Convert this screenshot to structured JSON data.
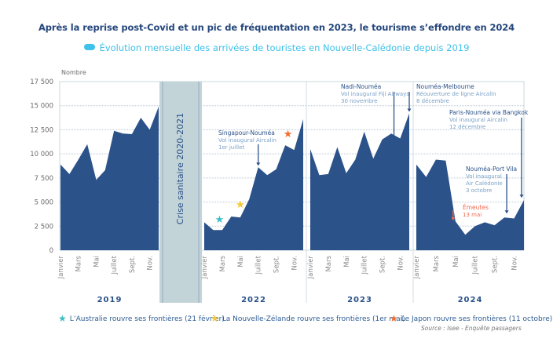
{
  "header": {
    "title": "Après la reprise post-Covid et un pic de fréquentation en 2023, le tourisme s’effondre en 2024",
    "subtitle": "Évolution mensuelle des arrivées de touristes en Nouvelle-Calédonie depuis 2019"
  },
  "colors": {
    "area": "#2b5289",
    "covid_band": "#c3d4d8",
    "title": "#24467c",
    "subtitle": "#3ec1ea",
    "annotation_title": "#2b5289",
    "annotation_text": "#7aa0c6",
    "riots": "#f0684f",
    "star_australia": "#3bbfc4",
    "star_nz": "#f9c830",
    "star_japan": "#f36b2b"
  },
  "chart_data": {
    "type": "area",
    "title": "Évolution mensuelle des arrivées de touristes en Nouvelle-Calédonie depuis 2019",
    "ylabel": "Nombre",
    "ylim": [
      0,
      17500
    ],
    "yticks": [
      0,
      2500,
      5000,
      7500,
      10000,
      12500,
      15000,
      17500
    ],
    "ytick_labels": [
      "0",
      "2 500",
      "5 000",
      "7 500",
      "10 000",
      "12 500",
      "15 000",
      "17 500"
    ],
    "grid": true,
    "month_tick_labels": [
      "Janvier",
      "Mars",
      "Mai",
      "Juillet",
      "Sept.",
      "Nov."
    ],
    "covid_band_label": "Crise sanitaire 2020-2021",
    "series": [
      {
        "year": "2019",
        "values": [
          8900,
          7900,
          9400,
          11000,
          7300,
          8300,
          12400,
          12100,
          12050,
          13750,
          12500,
          14900
        ]
      },
      {
        "year": "2022",
        "values": [
          2900,
          2100,
          2100,
          3500,
          3400,
          5300,
          8600,
          7800,
          8400,
          10900,
          10400,
          13600
        ]
      },
      {
        "year": "2023",
        "values": [
          10500,
          7800,
          7900,
          10700,
          8000,
          9400,
          12300,
          9500,
          11500,
          12100,
          11600,
          14200
        ]
      },
      {
        "year": "2024",
        "values": [
          8900,
          7600,
          9400,
          9300,
          3000,
          1600,
          2500,
          2900,
          2600,
          3400,
          3300,
          5200
        ]
      }
    ],
    "annotations": [
      {
        "title": "Singapour-Nouméa",
        "lines": [
          "Vol inaugural Aircalin",
          "1er juillet"
        ],
        "year": "2022",
        "month": 7
      },
      {
        "title": "Nadi-Nouméa",
        "lines": [
          "Vol inaugural Fiji Airways",
          "30 novembre"
        ],
        "year": "2023",
        "month": 11
      },
      {
        "title": "Nouméa-Melbourne",
        "lines": [
          "Réouverture de ligne Aircalin",
          "8 décembre"
        ],
        "year": "2023",
        "month": 12
      },
      {
        "title": "Paris-Nouméa via Bangkok",
        "lines": [
          "Vol inaugural Aircalin",
          "12 décembre"
        ],
        "year": "2024",
        "month": 12
      },
      {
        "title": "Nouméa-Port Vila",
        "lines": [
          "Vol inaugural",
          "Air Calédonie",
          "3 octobre"
        ],
        "year": "2024",
        "month": 10
      },
      {
        "title": "Émeutes",
        "lines": [
          "13 mai"
        ],
        "year": "2024",
        "month": 5
      }
    ],
    "stars": [
      {
        "label": "L’Australie rouvre ses frontières (21 février)",
        "year": "2022",
        "month": 2.7
      },
      {
        "label": "La Nouvelle-Zélande rouvre ses frontières (1er mai)",
        "year": "2022",
        "month": 5
      },
      {
        "label": "Le Japon rouvre ses frontières (11 octobre)",
        "year": "2022",
        "month": 10.3
      }
    ],
    "legend_position": "bottom",
    "source": "Source : Isee - Enquête passagers"
  }
}
